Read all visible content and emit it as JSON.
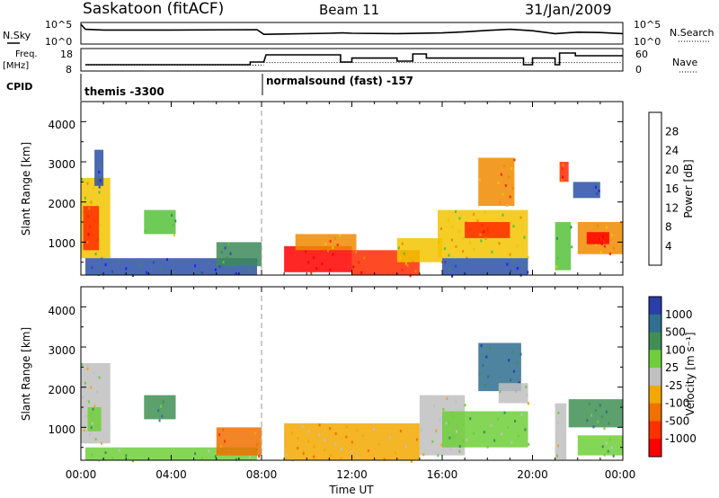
{
  "header": {
    "title": "Saskatoon (fitACF)",
    "beam": "Beam 11",
    "date": "31/Jan/2009"
  },
  "noise_panel": {
    "left_label": "N.Sky",
    "left_ticks": [
      "10^5",
      "10^0"
    ],
    "right_label": "N.Search",
    "right_ticks": [
      "10^5",
      "10^0"
    ]
  },
  "freq_panel": {
    "left_label_1": "Freq.",
    "left_label_2": "[MHz]",
    "left_ticks": [
      "18",
      "8"
    ],
    "right_label": "Nave",
    "right_ticks": [
      "60",
      "0"
    ]
  },
  "cpid_panel": {
    "label": "CPID",
    "modes": [
      "themis -3300",
      "normalsound (fast) -157"
    ]
  },
  "axes": {
    "y_label": "Slant Range [km]",
    "y_ticks": [
      "1000",
      "2000",
      "3000",
      "4000"
    ],
    "x_ticks": [
      "00:00",
      "04:00",
      "08:00",
      "12:00",
      "16:00",
      "20:00",
      "00:00"
    ],
    "x_label": "Time UT"
  },
  "power_colorbar": {
    "label": "Power [dB]",
    "ticks": [
      "4",
      "8",
      "12",
      "16",
      "20",
      "24",
      "28"
    ],
    "colors": [
      "#1f1fff",
      "#2c4fa8",
      "#3d8a5a",
      "#56c23a",
      "#f2c400",
      "#f08a00",
      "#ff2a00",
      "#ff0000"
    ]
  },
  "velocity_colorbar": {
    "label": "Velocity [m s⁻¹]",
    "ticks": [
      "1000",
      "500",
      "100",
      "25",
      "-25",
      "-100",
      "-500",
      "-1000"
    ],
    "colors": [
      "#2a3da8",
      "#2f6f8f",
      "#3f8f55",
      "#6fcf3a",
      "#c0c0c0",
      "#f2a800",
      "#f07000",
      "#ff3000",
      "#ff0000"
    ]
  },
  "chart_data": [
    {
      "type": "line",
      "title": "N.Sky / N.Search",
      "x_unit": "hours UT",
      "x": [
        0,
        0.2,
        1,
        4,
        7.8,
        8.1,
        9,
        11,
        11.6,
        12,
        14,
        16,
        17,
        18,
        19,
        20,
        21,
        22,
        23,
        24
      ],
      "y": [
        5,
        3.6,
        3.4,
        3.4,
        3.5,
        2.2,
        2.3,
        2.5,
        2.6,
        2.5,
        2.4,
        2.6,
        2.9,
        3.3,
        3.6,
        3.2,
        2.4,
        2.8,
        2.7,
        2.4
      ]
    },
    {
      "type": "line",
      "title": "Freq. [MHz] / Nave",
      "x_unit": "hours UT",
      "freq_steps": [
        {
          "t0": 0.2,
          "t1": 7.5,
          "v": 10.5
        },
        {
          "t0": 7.5,
          "t1": 8.1,
          "v": 12.0
        },
        {
          "t0": 8.2,
          "t1": 11.5,
          "v": 16.0
        },
        {
          "t0": 11.5,
          "t1": 12.0,
          "v": 12.0
        },
        {
          "t0": 12.0,
          "t1": 14.0,
          "v": 14.2
        },
        {
          "t0": 14.0,
          "t1": 14.7,
          "v": 12.5
        },
        {
          "t0": 14.7,
          "t1": 15.3,
          "v": 16.5
        },
        {
          "t0": 15.3,
          "t1": 16.5,
          "v": 14.2
        },
        {
          "t0": 16.5,
          "t1": 19.6,
          "v": 14.2
        },
        {
          "t0": 19.6,
          "t1": 20.0,
          "v": 10.5
        },
        {
          "t0": 20.0,
          "t1": 21.0,
          "v": 14.2
        },
        {
          "t0": 21.0,
          "t1": 21.2,
          "v": 10.5
        },
        {
          "t0": 21.2,
          "t1": 21.9,
          "v": 17.0
        },
        {
          "t0": 21.9,
          "t1": 24.0,
          "v": 15.5
        }
      ],
      "nave_dotted": [
        {
          "t0": 0.2,
          "t1": 8.1,
          "v": 14
        },
        {
          "t0": 8.1,
          "t1": 24.0,
          "v": 22
        }
      ]
    },
    {
      "type": "heatmap",
      "title": "Power [dB]",
      "xlabel": "",
      "ylabel": "Slant Range [km]",
      "xlim": [
        0,
        24
      ],
      "ylim": [
        180,
        4500
      ],
      "patches": [
        {
          "t0": 0.0,
          "t1": 1.3,
          "r0": 600,
          "r1": 2600,
          "c": 4
        },
        {
          "t0": 0.1,
          "t1": 0.8,
          "r0": 800,
          "r1": 1900,
          "c": 6
        },
        {
          "t0": 0.6,
          "t1": 1.0,
          "r0": 2400,
          "r1": 3300,
          "c": 1
        },
        {
          "t0": 0.2,
          "t1": 7.8,
          "r0": 180,
          "r1": 600,
          "c": 1
        },
        {
          "t0": 2.8,
          "t1": 4.2,
          "r0": 1200,
          "r1": 1800,
          "c": 3
        },
        {
          "t0": 6.0,
          "t1": 8.0,
          "r0": 400,
          "r1": 1000,
          "c": 2
        },
        {
          "t0": 9.0,
          "t1": 12.0,
          "r0": 250,
          "r1": 900,
          "c": 7
        },
        {
          "t0": 9.5,
          "t1": 12.2,
          "r0": 800,
          "r1": 1200,
          "c": 5
        },
        {
          "t0": 12.0,
          "t1": 15.0,
          "r0": 180,
          "r1": 800,
          "c": 6
        },
        {
          "t0": 14.0,
          "t1": 16.0,
          "r0": 500,
          "r1": 1100,
          "c": 4
        },
        {
          "t0": 15.8,
          "t1": 19.8,
          "r0": 600,
          "r1": 1800,
          "c": 4
        },
        {
          "t0": 17.0,
          "t1": 19.0,
          "r0": 1100,
          "r1": 1500,
          "c": 6
        },
        {
          "t0": 17.6,
          "t1": 19.2,
          "r0": 1900,
          "r1": 3100,
          "c": 5
        },
        {
          "t0": 16.0,
          "t1": 19.8,
          "r0": 180,
          "r1": 600,
          "c": 1
        },
        {
          "t0": 21.0,
          "t1": 21.7,
          "r0": 300,
          "r1": 1500,
          "c": 3
        },
        {
          "t0": 21.2,
          "t1": 21.6,
          "r0": 2500,
          "r1": 3000,
          "c": 6
        },
        {
          "t0": 22.0,
          "t1": 24.0,
          "r0": 700,
          "r1": 1500,
          "c": 5
        },
        {
          "t0": 22.4,
          "t1": 23.4,
          "r0": 950,
          "r1": 1250,
          "c": 7
        },
        {
          "t0": 21.8,
          "t1": 23.0,
          "r0": 2100,
          "r1": 2500,
          "c": 1
        }
      ]
    },
    {
      "type": "heatmap",
      "title": "Velocity [m s⁻¹]",
      "xlabel": "Time UT",
      "ylabel": "Slant Range [km]",
      "xlim": [
        0,
        24
      ],
      "ylim": [
        180,
        4500
      ],
      "patches": [
        {
          "t0": 0.0,
          "t1": 1.3,
          "r0": 600,
          "r1": 2600,
          "c": 4
        },
        {
          "t0": 0.3,
          "t1": 0.9,
          "r0": 900,
          "r1": 1500,
          "c": 3
        },
        {
          "t0": 2.8,
          "t1": 4.2,
          "r0": 1200,
          "r1": 1800,
          "c": 2
        },
        {
          "t0": 0.2,
          "t1": 7.8,
          "r0": 180,
          "r1": 500,
          "c": 3
        },
        {
          "t0": 6.0,
          "t1": 8.0,
          "r0": 300,
          "r1": 1000,
          "c": 6
        },
        {
          "t0": 9.0,
          "t1": 15.0,
          "r0": 180,
          "r1": 1100,
          "c": 5
        },
        {
          "t0": 15.0,
          "t1": 17.0,
          "r0": 300,
          "r1": 1800,
          "c": 4
        },
        {
          "t0": 16.0,
          "t1": 19.8,
          "r0": 500,
          "r1": 1400,
          "c": 3
        },
        {
          "t0": 17.6,
          "t1": 19.5,
          "r0": 1900,
          "r1": 3100,
          "c": 1
        },
        {
          "t0": 18.5,
          "t1": 19.8,
          "r0": 1600,
          "r1": 2100,
          "c": 4
        },
        {
          "t0": 21.0,
          "t1": 21.5,
          "r0": 200,
          "r1": 1600,
          "c": 4
        },
        {
          "t0": 21.6,
          "t1": 24.0,
          "r0": 1000,
          "r1": 1700,
          "c": 2
        },
        {
          "t0": 22.0,
          "t1": 24.0,
          "r0": 300,
          "r1": 800,
          "c": 3
        }
      ]
    }
  ]
}
